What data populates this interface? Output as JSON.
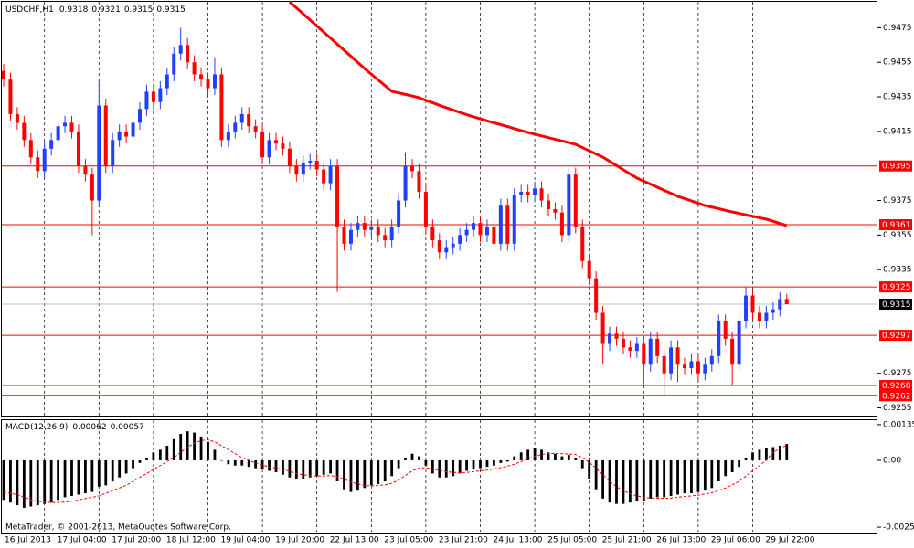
{
  "chart_data": [
    {
      "type": "candlestick",
      "title": "USDCHF,H1",
      "categories": [
        "16 Jul 2013",
        null,
        null,
        null,
        null,
        null,
        "17 Jul 04:00",
        null,
        null,
        null,
        null,
        null,
        null,
        null,
        "17 Jul 20:00",
        null,
        null,
        null,
        null,
        null,
        null,
        null,
        "18 Jul 12:00",
        null,
        null,
        null,
        null,
        null,
        null,
        null,
        "19 Jul 04:00",
        null,
        null,
        null,
        null,
        null,
        null,
        null,
        "19 Jul 20:00",
        null,
        null,
        null,
        null,
        null,
        null,
        null,
        "22 Jul 13:00",
        null,
        null,
        null,
        null,
        null,
        null,
        null,
        "23 Jul 05:00",
        null,
        null,
        null,
        null,
        null,
        null,
        null,
        "23 Jul 21:00",
        null,
        null,
        null,
        null,
        null,
        null,
        null,
        "24 Jul 13:00",
        null,
        null,
        null,
        null,
        null,
        null,
        null,
        "25 Jul 05:00",
        null,
        null,
        null,
        null,
        null,
        null,
        null,
        "25 Jul 21:00",
        null,
        null,
        null,
        null,
        null,
        null,
        null,
        "26 Jul 13:00",
        null,
        null,
        null,
        null,
        null,
        null,
        null,
        "29 Jul 06:00",
        null,
        null,
        null,
        null,
        null,
        null,
        null,
        "29 Jul 22:00",
        null,
        null,
        null,
        null,
        null
      ],
      "open": [
        0.945,
        0.9445,
        0.9425,
        0.942,
        0.941,
        0.94,
        0.9392,
        0.9405,
        0.941,
        0.9418,
        0.942,
        0.9415,
        0.9395,
        0.939,
        0.9375,
        0.943,
        0.9395,
        0.941,
        0.9415,
        0.9412,
        0.942,
        0.9428,
        0.9438,
        0.9432,
        0.944,
        0.9448,
        0.946,
        0.9465,
        0.9455,
        0.9448,
        0.9445,
        0.944,
        0.9448,
        0.941,
        0.9415,
        0.942,
        0.9425,
        0.9418,
        0.9415,
        0.94,
        0.941,
        0.9408,
        0.9405,
        0.9395,
        0.939,
        0.9397,
        0.9398,
        0.9393,
        0.9385,
        0.9395,
        0.936,
        0.935,
        0.9358,
        0.9362,
        0.9358,
        0.936,
        0.9355,
        0.9352,
        0.936,
        0.9375,
        0.9395,
        0.9392,
        0.938,
        0.936,
        0.9352,
        0.9345,
        0.9348,
        0.935,
        0.9355,
        0.9358,
        0.9362,
        0.9355,
        0.936,
        0.935,
        0.9372,
        0.935,
        0.9378,
        0.938,
        0.9378,
        0.9382,
        0.9375,
        0.937,
        0.9368,
        0.9355,
        0.939,
        0.936,
        0.934,
        0.933,
        0.931,
        0.9292,
        0.9298,
        0.9295,
        0.929,
        0.9288,
        0.9292,
        0.928,
        0.9295,
        0.9285,
        0.9275,
        0.929,
        0.928,
        0.9278,
        0.9282,
        0.9275,
        0.928,
        0.9285,
        0.9305,
        0.9295,
        0.928,
        0.9305,
        0.932,
        0.931,
        0.9305,
        0.931,
        0.9312,
        0.9318
      ],
      "high": [
        0.9454,
        0.9449,
        0.9429,
        0.9424,
        0.9414,
        0.9404,
        0.9409,
        0.9414,
        0.9422,
        0.9424,
        0.9424,
        0.9419,
        0.9399,
        0.9394,
        0.9445,
        0.9434,
        0.9414,
        0.9419,
        0.9419,
        0.9424,
        0.9432,
        0.9442,
        0.9442,
        0.9444,
        0.9452,
        0.9464,
        0.9475,
        0.9469,
        0.9459,
        0.9452,
        0.9449,
        0.9458,
        0.9452,
        0.9419,
        0.9424,
        0.9429,
        0.9429,
        0.9422,
        0.9419,
        0.9414,
        0.9414,
        0.9412,
        0.9409,
        0.9399,
        0.9401,
        0.9402,
        0.9402,
        0.9397,
        0.9399,
        0.9399,
        0.9364,
        0.9362,
        0.9366,
        0.9366,
        0.9364,
        0.9364,
        0.9359,
        0.9364,
        0.9379,
        0.9403,
        0.9399,
        0.9396,
        0.9384,
        0.9364,
        0.9356,
        0.9352,
        0.9354,
        0.9359,
        0.9362,
        0.9366,
        0.9366,
        0.9364,
        0.9364,
        0.9376,
        0.9376,
        0.9382,
        0.9384,
        0.9384,
        0.9386,
        0.9386,
        0.9379,
        0.9374,
        0.9372,
        0.9394,
        0.9394,
        0.9364,
        0.9344,
        0.9334,
        0.9314,
        0.9302,
        0.9302,
        0.9299,
        0.9294,
        0.9296,
        0.9296,
        0.9299,
        0.9299,
        0.9289,
        0.9294,
        0.9294,
        0.9284,
        0.9286,
        0.9286,
        0.9284,
        0.9289,
        0.9309,
        0.9309,
        0.9299,
        0.9309,
        0.9325,
        0.9324,
        0.9314,
        0.9314,
        0.9316,
        0.9322,
        0.9321
      ],
      "low": [
        0.9441,
        0.9421,
        0.9416,
        0.9406,
        0.9396,
        0.9388,
        0.9388,
        0.9401,
        0.9406,
        0.9414,
        0.9411,
        0.9391,
        0.9386,
        0.9355,
        0.9371,
        0.9391,
        0.9391,
        0.9406,
        0.9408,
        0.9408,
        0.9416,
        0.9424,
        0.9428,
        0.9428,
        0.9436,
        0.9444,
        0.9456,
        0.9451,
        0.9444,
        0.9441,
        0.9436,
        0.9436,
        0.9406,
        0.9406,
        0.9411,
        0.9416,
        0.9414,
        0.9411,
        0.9396,
        0.9396,
        0.9404,
        0.9401,
        0.9391,
        0.9386,
        0.9386,
        0.9393,
        0.9389,
        0.9381,
        0.9381,
        0.9322,
        0.9346,
        0.9346,
        0.9354,
        0.9354,
        0.9354,
        0.9351,
        0.9348,
        0.9348,
        0.9356,
        0.9371,
        0.9388,
        0.9376,
        0.9356,
        0.9348,
        0.9341,
        0.9341,
        0.9344,
        0.9346,
        0.9351,
        0.9354,
        0.9351,
        0.9351,
        0.9346,
        0.9346,
        0.9346,
        0.9346,
        0.9374,
        0.9374,
        0.9374,
        0.9371,
        0.9366,
        0.9364,
        0.9351,
        0.9351,
        0.9356,
        0.9336,
        0.9326,
        0.9306,
        0.928,
        0.9288,
        0.9291,
        0.9286,
        0.9284,
        0.9284,
        0.9268,
        0.9276,
        0.9281,
        0.9262,
        0.9271,
        0.927,
        0.9274,
        0.9274,
        0.9271,
        0.9271,
        0.9276,
        0.9281,
        0.9291,
        0.9268,
        0.9276,
        0.9301,
        0.9306,
        0.9301,
        0.9301,
        0.9306,
        0.9308,
        0.9315
      ],
      "close": [
        0.9445,
        0.9425,
        0.942,
        0.941,
        0.94,
        0.9392,
        0.9405,
        0.941,
        0.9418,
        0.942,
        0.9415,
        0.9395,
        0.939,
        0.9375,
        0.943,
        0.9395,
        0.941,
        0.9415,
        0.9412,
        0.942,
        0.9428,
        0.9438,
        0.9432,
        0.944,
        0.9448,
        0.946,
        0.9465,
        0.9455,
        0.9448,
        0.9445,
        0.944,
        0.9448,
        0.941,
        0.9415,
        0.942,
        0.9425,
        0.9418,
        0.9415,
        0.94,
        0.941,
        0.9408,
        0.9405,
        0.9395,
        0.939,
        0.9397,
        0.9398,
        0.9393,
        0.9385,
        0.9395,
        0.936,
        0.935,
        0.9358,
        0.9362,
        0.9358,
        0.936,
        0.9355,
        0.9352,
        0.936,
        0.9375,
        0.9395,
        0.9392,
        0.938,
        0.936,
        0.9352,
        0.9345,
        0.9348,
        0.935,
        0.9355,
        0.9358,
        0.9362,
        0.9355,
        0.936,
        0.935,
        0.9372,
        0.935,
        0.9378,
        0.938,
        0.9378,
        0.9382,
        0.9375,
        0.937,
        0.9368,
        0.9355,
        0.939,
        0.936,
        0.934,
        0.933,
        0.931,
        0.9292,
        0.9298,
        0.9295,
        0.929,
        0.9288,
        0.9292,
        0.928,
        0.9295,
        0.9285,
        0.9275,
        0.929,
        0.928,
        0.9278,
        0.9282,
        0.9275,
        0.928,
        0.9285,
        0.9305,
        0.9295,
        0.928,
        0.9305,
        0.932,
        0.931,
        0.9305,
        0.931,
        0.9312,
        0.9318,
        0.9315
      ],
      "up_color": "#2040ff",
      "down_color": "#ff0000",
      "ma": {
        "color": "#ff0000",
        "values": [
          null,
          null,
          null,
          null,
          null,
          null,
          null,
          null,
          null,
          null,
          null,
          null,
          null,
          null,
          null,
          null,
          null,
          null,
          null,
          null,
          null,
          null,
          null,
          null,
          null,
          null,
          null,
          null,
          null,
          null,
          null,
          null,
          null,
          null,
          null,
          null,
          null,
          null,
          null,
          null,
          null,
          null,
          0.949,
          0.94865,
          0.9483,
          0.94795,
          0.9476,
          0.94725,
          0.9469,
          0.94655,
          0.9462,
          0.94585,
          0.9455,
          0.94514,
          0.94481,
          0.94448,
          0.94415,
          0.94382,
          0.94373,
          0.94364,
          0.94355,
          0.94345,
          0.9433,
          0.94316,
          0.94301,
          0.94287,
          0.94274,
          0.9426,
          0.94247,
          0.94234,
          0.94223,
          0.94211,
          0.942,
          0.94189,
          0.94178,
          0.94166,
          0.94155,
          0.94144,
          0.94134,
          0.94124,
          0.94114,
          0.94104,
          0.94095,
          0.94085,
          0.94075,
          0.94056,
          0.94038,
          0.94019,
          0.94001,
          0.93977,
          0.93953,
          0.93928,
          0.93904,
          0.9388,
          0.93862,
          0.93845,
          0.93827,
          0.93809,
          0.93792,
          0.93774,
          0.93761,
          0.93748,
          0.93734,
          0.93721,
          0.93712,
          0.93703,
          0.93693,
          0.93684,
          0.93676,
          0.93667,
          0.93659,
          0.9365,
          0.93642,
          0.9363,
          0.93617,
          0.93605
        ]
      },
      "levels": {
        "color": "#ff0000",
        "values": [
          0.9395,
          0.9361,
          0.9325,
          0.9297,
          0.9268,
          0.9262
        ]
      },
      "ylim": [
        0.925,
        0.949
      ],
      "yticks": [
        0.9475,
        0.9455,
        0.9435,
        0.9415,
        0.9375,
        0.9355,
        0.9335,
        0.9275,
        0.9255
      ],
      "grid": true
    },
    {
      "type": "macd",
      "title": "MACD(12,26,9)",
      "histogram": {
        "color": "#000000",
        "values": [
          -0.0015,
          -0.0016,
          -0.0017,
          -0.0018,
          -0.00175,
          -0.0017,
          -0.00165,
          -0.0016,
          -0.0015,
          -0.0014,
          -0.00135,
          -0.0013,
          -0.00125,
          -0.0012,
          -0.001,
          -0.00095,
          -0.0008,
          -0.00065,
          -0.0005,
          -0.0003,
          -0.0001,
          0.0001,
          0.0003,
          0.0004,
          0.00055,
          0.0008,
          0.001,
          0.0011,
          0.00105,
          0.0009,
          0.0007,
          0.0004,
          0.0,
          -0.00015,
          -0.0002,
          -0.0002,
          -0.00025,
          -0.0003,
          -0.00035,
          -0.0004,
          -0.00045,
          -0.00055,
          -0.00065,
          -0.0007,
          -0.0007,
          -0.00065,
          -0.0006,
          -0.00055,
          -0.0005,
          -0.0008,
          -0.0011,
          -0.0012,
          -0.00115,
          -0.00105,
          -0.00095,
          -0.0009,
          -0.0008,
          -0.0006,
          -0.0003,
          0.0001,
          0.00025,
          0.00015,
          -0.0002,
          -0.0005,
          -0.00065,
          -0.00065,
          -0.0006,
          -0.0005,
          -0.0004,
          -0.00035,
          -0.0003,
          -0.00025,
          -0.0002,
          -0.0001,
          -5e-05,
          0.00015,
          0.0003,
          0.0004,
          0.00045,
          0.0004,
          0.0003,
          0.00025,
          0.00015,
          0.0002,
          0.0001,
          -0.0003,
          -0.0007,
          -0.0011,
          -0.00145,
          -0.0016,
          -0.00165,
          -0.00165,
          -0.0016,
          -0.00155,
          -0.00155,
          -0.00145,
          -0.0014,
          -0.0014,
          -0.00135,
          -0.0013,
          -0.00125,
          -0.00125,
          -0.0012,
          -0.00115,
          -0.00105,
          -0.0008,
          -0.0006,
          -0.00045,
          -0.00025,
          0.0001,
          0.0003,
          0.0004,
          0.00045,
          0.0005,
          0.00055,
          0.00062
        ]
      },
      "signal": {
        "color": "#ff0000",
        "values": [
          -0.0012,
          -0.00125,
          -0.0013,
          -0.0014,
          -0.0015,
          -0.00155,
          -0.00158,
          -0.0016,
          -0.0016,
          -0.00158,
          -0.00155,
          -0.0015,
          -0.00145,
          -0.0014,
          -0.00135,
          -0.00125,
          -0.00115,
          -0.00105,
          -0.00095,
          -0.0008,
          -0.00065,
          -0.0005,
          -0.00035,
          -0.0002,
          -5e-05,
          0.0001,
          0.0003,
          0.0005,
          0.00065,
          0.00075,
          0.00078,
          0.0007,
          0.00055,
          0.0004,
          0.00025,
          0.0001,
          0.0,
          -0.0001,
          -0.00018,
          -0.00025,
          -0.0003,
          -0.00035,
          -0.00042,
          -0.0005,
          -0.00055,
          -0.00058,
          -0.0006,
          -0.0006,
          -0.00058,
          -0.00062,
          -0.00072,
          -0.00082,
          -0.0009,
          -0.00095,
          -0.00097,
          -0.00096,
          -0.00093,
          -0.00087,
          -0.00075,
          -0.00058,
          -0.0004,
          -0.0003,
          -0.00028,
          -0.00032,
          -0.00038,
          -0.00043,
          -0.00046,
          -0.00047,
          -0.00046,
          -0.00043,
          -0.0004,
          -0.00037,
          -0.00033,
          -0.00028,
          -0.00022,
          -0.00015,
          -5e-05,
          5e-05,
          0.00015,
          0.00022,
          0.00025,
          0.00026,
          0.00025,
          0.00024,
          0.00022,
          0.0001,
          -8e-05,
          -0.0003,
          -0.00055,
          -0.0008,
          -0.001,
          -0.00115,
          -0.00127,
          -0.00135,
          -0.0014,
          -0.00143,
          -0.00144,
          -0.00144,
          -0.00143,
          -0.0014,
          -0.00137,
          -0.00135,
          -0.00132,
          -0.00128,
          -0.00123,
          -0.00115,
          -0.00105,
          -0.00093,
          -0.0008,
          -0.0006,
          -0.0004,
          -0.0002,
          0.0,
          0.0003,
          0.00045,
          0.00057
        ]
      },
      "ylim": [
        -0.00277,
        0.00152
      ],
      "yticks": [
        0.00135,
        {
          "value": 0,
          "label": "0.00"
        },
        -0.00253
      ]
    }
  ],
  "footer": "MetaTrader, © 2001-2013, MetaQuotes Software Corp."
}
